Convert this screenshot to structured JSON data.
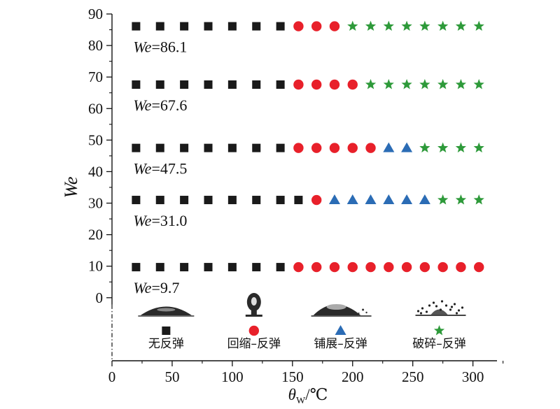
{
  "chart_data": {
    "type": "scatter",
    "xlabel_symbol": "θ",
    "xlabel_sub": "W",
    "xlabel_unit": "/℃",
    "ylabel": "We",
    "xlim": [
      0,
      320
    ],
    "ylim": [
      -20,
      90
    ],
    "xticks": [
      0,
      50,
      100,
      150,
      200,
      250,
      300
    ],
    "yticks": [
      0,
      10,
      20,
      30,
      40,
      50,
      60,
      70,
      80,
      90
    ],
    "grid": false,
    "legend_position": "bottom, inside plot",
    "colors": {
      "no_rebound": "#1a1a1a",
      "retraction_rebound": "#e8202a",
      "spreading_rebound": "#2b6cb5",
      "breakup_rebound": "#2e9a3a"
    },
    "series": [
      {
        "name": "无反弹",
        "marker": "square",
        "points": [
          [
            20,
            86.1
          ],
          [
            40,
            86.1
          ],
          [
            60,
            86.1
          ],
          [
            80,
            86.1
          ],
          [
            100,
            86.1
          ],
          [
            120,
            86.1
          ],
          [
            140,
            86.1
          ],
          [
            20,
            67.6
          ],
          [
            40,
            67.6
          ],
          [
            60,
            67.6
          ],
          [
            80,
            67.6
          ],
          [
            100,
            67.6
          ],
          [
            120,
            67.6
          ],
          [
            140,
            67.6
          ],
          [
            20,
            47.5
          ],
          [
            40,
            47.5
          ],
          [
            60,
            47.5
          ],
          [
            80,
            47.5
          ],
          [
            100,
            47.5
          ],
          [
            120,
            47.5
          ],
          [
            140,
            47.5
          ],
          [
            20,
            31.0
          ],
          [
            40,
            31.0
          ],
          [
            60,
            31.0
          ],
          [
            80,
            31.0
          ],
          [
            100,
            31.0
          ],
          [
            120,
            31.0
          ],
          [
            140,
            31.0
          ],
          [
            155,
            31.0
          ],
          [
            20,
            9.7
          ],
          [
            40,
            9.7
          ],
          [
            60,
            9.7
          ],
          [
            80,
            9.7
          ],
          [
            100,
            9.7
          ],
          [
            120,
            9.7
          ],
          [
            140,
            9.7
          ]
        ]
      },
      {
        "name": "回缩–反弹",
        "marker": "circle",
        "points": [
          [
            155,
            86.1
          ],
          [
            170,
            86.1
          ],
          [
            185,
            86.1
          ],
          [
            155,
            67.6
          ],
          [
            170,
            67.6
          ],
          [
            185,
            67.6
          ],
          [
            200,
            67.6
          ],
          [
            155,
            47.5
          ],
          [
            170,
            47.5
          ],
          [
            185,
            47.5
          ],
          [
            200,
            47.5
          ],
          [
            215,
            47.5
          ],
          [
            170,
            31.0
          ],
          [
            155,
            9.7
          ],
          [
            170,
            9.7
          ],
          [
            185,
            9.7
          ],
          [
            200,
            9.7
          ],
          [
            215,
            9.7
          ],
          [
            230,
            9.7
          ],
          [
            245,
            9.7
          ],
          [
            260,
            9.7
          ],
          [
            275,
            9.7
          ],
          [
            290,
            9.7
          ],
          [
            305,
            9.7
          ]
        ]
      },
      {
        "name": "铺展–反弹",
        "marker": "triangle",
        "points": [
          [
            230,
            47.5
          ],
          [
            245,
            47.5
          ],
          [
            185,
            31.0
          ],
          [
            200,
            31.0
          ],
          [
            215,
            31.0
          ],
          [
            230,
            31.0
          ],
          [
            245,
            31.0
          ],
          [
            260,
            31.0
          ]
        ]
      },
      {
        "name": "破碎–反弹",
        "marker": "star",
        "points": [
          [
            200,
            86.1
          ],
          [
            215,
            86.1
          ],
          [
            230,
            86.1
          ],
          [
            245,
            86.1
          ],
          [
            260,
            86.1
          ],
          [
            275,
            86.1
          ],
          [
            290,
            86.1
          ],
          [
            305,
            86.1
          ],
          [
            215,
            67.6
          ],
          [
            230,
            67.6
          ],
          [
            245,
            67.6
          ],
          [
            260,
            67.6
          ],
          [
            275,
            67.6
          ],
          [
            290,
            67.6
          ],
          [
            305,
            67.6
          ],
          [
            260,
            47.5
          ],
          [
            275,
            47.5
          ],
          [
            290,
            47.5
          ],
          [
            305,
            47.5
          ],
          [
            275,
            31.0
          ],
          [
            290,
            31.0
          ],
          [
            305,
            31.0
          ]
        ]
      }
    ],
    "annotations": [
      {
        "prefix": "We",
        "text": "=86.1",
        "anchor": [
          20,
          86.1
        ]
      },
      {
        "prefix": "We",
        "text": "=67.6",
        "anchor": [
          20,
          67.6
        ]
      },
      {
        "prefix": "We",
        "text": "=47.5",
        "anchor": [
          20,
          47.5
        ]
      },
      {
        "prefix": "We",
        "text": "=31.0",
        "anchor": [
          20,
          31.0
        ]
      },
      {
        "prefix": "We",
        "text": "=9.7",
        "anchor": [
          20,
          9.7
        ]
      }
    ],
    "legend": [
      {
        "label": "无反弹",
        "marker": "square",
        "image": "droplet-flat"
      },
      {
        "label": "回缩–反弹",
        "marker": "circle",
        "image": "droplet-column"
      },
      {
        "label": "铺展–反弹",
        "marker": "triangle",
        "image": "droplet-spread"
      },
      {
        "label": "破碎–反弹",
        "marker": "star",
        "image": "droplet-splash"
      }
    ]
  }
}
